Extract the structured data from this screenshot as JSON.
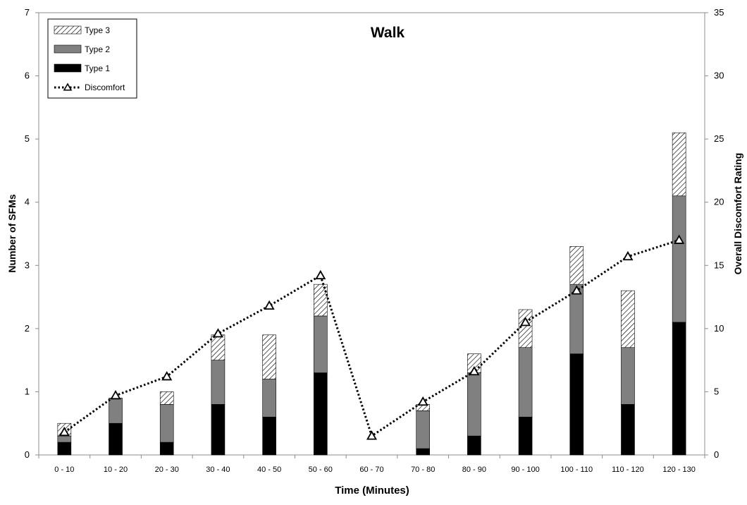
{
  "chart_data": {
    "type": "bar",
    "title": "Walk",
    "xlabel": "Time (Minutes)",
    "ylabel": "Number of SFMs",
    "y2label": "Overall Discomfort Rating",
    "ylim": [
      0,
      7
    ],
    "y2lim": [
      0,
      35
    ],
    "yticks": [
      "0",
      "1",
      "2",
      "3",
      "4",
      "5",
      "6",
      "7"
    ],
    "y2ticks": [
      "0",
      "5",
      "10",
      "15",
      "20",
      "25",
      "30",
      "35"
    ],
    "stacked": true,
    "grid": false,
    "legend_position": "top-left",
    "categories": [
      "0 - 10",
      "10 - 20",
      "20 - 30",
      "30 - 40",
      "40 - 50",
      "50 - 60",
      "60 - 70",
      "70 - 80",
      "80 - 90",
      "90 - 100",
      "100 - 110",
      "110 - 120",
      "120 - 130"
    ],
    "series": [
      {
        "name": "Type 1",
        "kind": "bar",
        "axis": "left",
        "color": "#000000",
        "values": [
          0.2,
          0.5,
          0.2,
          0.8,
          0.6,
          1.3,
          0,
          0.1,
          0.3,
          0.6,
          1.6,
          0.8,
          2.1
        ]
      },
      {
        "name": "Type 2",
        "kind": "bar",
        "axis": "left",
        "color": "#808080",
        "values": [
          0.1,
          0.4,
          0.6,
          0.7,
          0.6,
          0.9,
          0,
          0.6,
          1.0,
          1.1,
          1.1,
          0.9,
          2.0
        ]
      },
      {
        "name": "Type 3",
        "kind": "bar",
        "axis": "left",
        "pattern": "diagonal-hatch",
        "values": [
          0.2,
          0.0,
          0.2,
          0.4,
          0.7,
          0.5,
          0,
          0.1,
          0.3,
          0.6,
          0.6,
          0.9,
          1.0
        ]
      },
      {
        "name": "Discomfort",
        "kind": "line",
        "axis": "right",
        "color": "#000000",
        "line_style": "dotted",
        "marker": "open-triangle",
        "values": [
          1.8,
          4.7,
          6.2,
          9.6,
          11.8,
          14.2,
          1.5,
          4.2,
          6.6,
          10.5,
          13.0,
          15.7,
          17.0
        ]
      }
    ],
    "legend": [
      "Type 3",
      "Type 2",
      "Type 1",
      "Discomfort"
    ]
  }
}
